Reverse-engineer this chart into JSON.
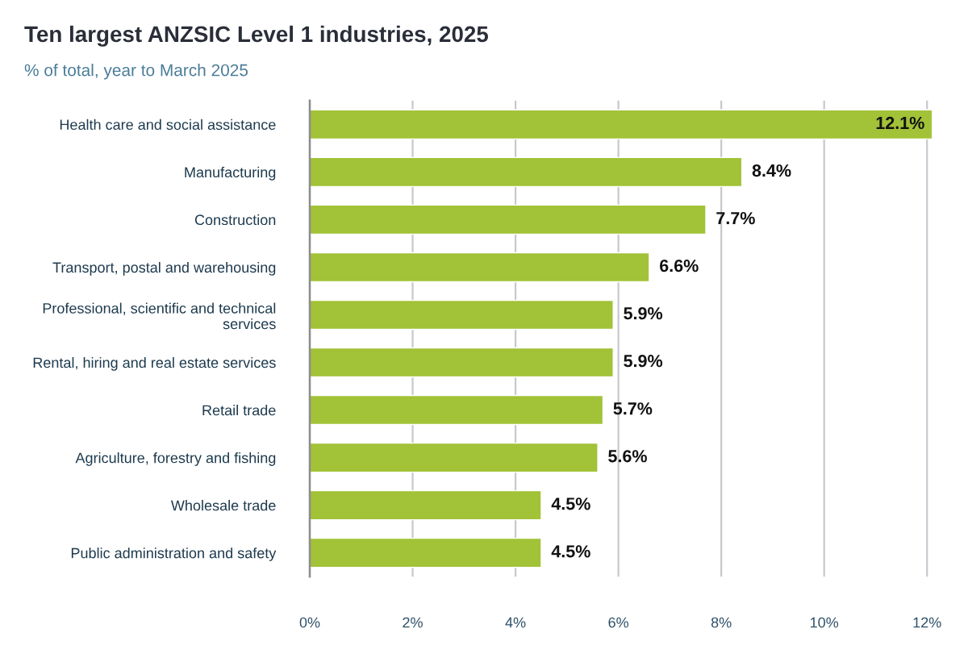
{
  "chart_data": {
    "type": "bar",
    "orientation": "horizontal",
    "title": "Ten largest ANZSIC Level 1 industries, 2025",
    "subtitle": "% of total, year to March 2025",
    "categories": [
      "Health care and social assistance",
      "Manufacturing",
      "Construction",
      "Transport, postal and warehousing",
      "Professional, scientific and technical services",
      "Rental, hiring and real estate services",
      "Retail trade",
      "Agriculture, forestry and fishing",
      "Wholesale trade",
      "Public administration and safety"
    ],
    "values": [
      12.1,
      8.4,
      7.7,
      6.6,
      5.9,
      5.9,
      5.7,
      5.6,
      4.5,
      4.5
    ],
    "value_labels": [
      "12.1%",
      "8.4%",
      "7.7%",
      "6.6%",
      "5.9%",
      "5.9%",
      "5.7%",
      "5.6%",
      "4.5%",
      "4.5%"
    ],
    "color": "#a2c237",
    "xlim": [
      0,
      12.1
    ],
    "xticks": [
      {
        "value": 0,
        "label": "0%"
      },
      {
        "value": 2,
        "label": "2%"
      },
      {
        "value": 4,
        "label": "4%"
      },
      {
        "value": 6,
        "label": "6%"
      },
      {
        "value": 8,
        "label": "8%"
      },
      {
        "value": 10,
        "label": "10%"
      },
      {
        "value": 12,
        "label": "12%"
      }
    ],
    "grid": "x",
    "legend": false
  }
}
